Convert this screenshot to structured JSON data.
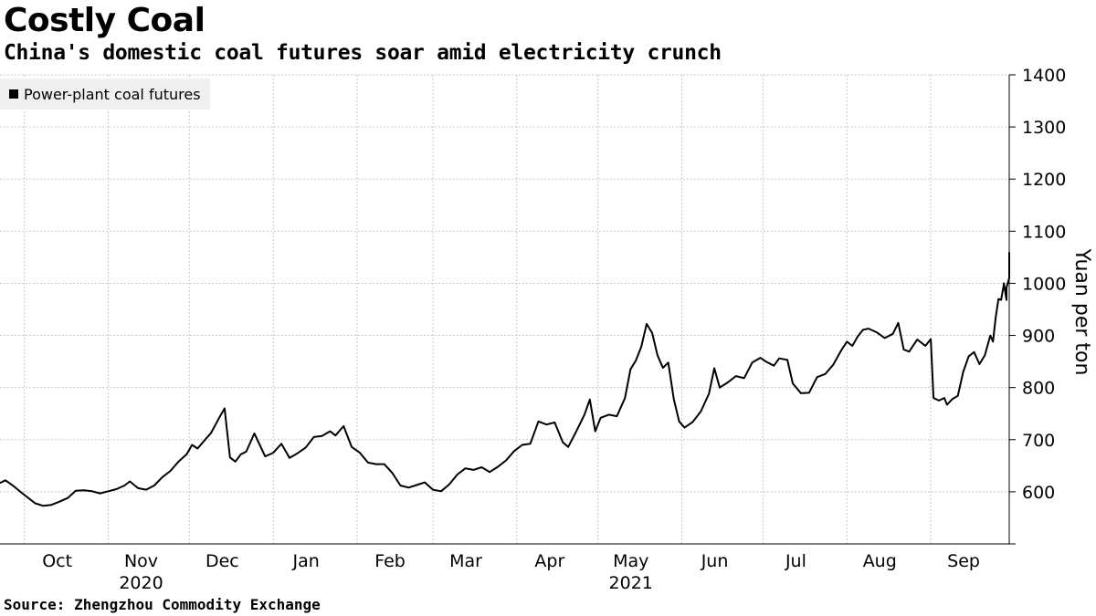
{
  "header": {
    "title": "Costly Coal",
    "subtitle": "China's domestic coal futures soar amid electricity crunch"
  },
  "footer": {
    "source": "Source: Zhengzhou Commodity Exchange"
  },
  "chart_data": {
    "type": "line",
    "title": "Costly Coal",
    "subtitle": "China's domestic coal futures soar amid electricity crunch",
    "ylabel": "Yuan per ton",
    "ylim": [
      500,
      1400
    ],
    "y_ticks": [
      600,
      700,
      800,
      900,
      1000,
      1100,
      1200,
      1300,
      1400
    ],
    "x_range": [
      "2020-09-22",
      "2021-09-30"
    ],
    "x_ticks": [
      {
        "date": "2020-10-01",
        "label": "Oct",
        "year": ""
      },
      {
        "date": "2020-11-01",
        "label": "Nov",
        "year": "2020"
      },
      {
        "date": "2020-12-01",
        "label": "Dec",
        "year": ""
      },
      {
        "date": "2021-01-01",
        "label": "Jan",
        "year": ""
      },
      {
        "date": "2021-02-01",
        "label": "Feb",
        "year": ""
      },
      {
        "date": "2021-03-01",
        "label": "Mar",
        "year": ""
      },
      {
        "date": "2021-04-01",
        "label": "Apr",
        "year": ""
      },
      {
        "date": "2021-05-01",
        "label": "May",
        "year": "2021"
      },
      {
        "date": "2021-06-01",
        "label": "Jun",
        "year": ""
      },
      {
        "date": "2021-07-01",
        "label": "Jul",
        "year": ""
      },
      {
        "date": "2021-08-01",
        "label": "Aug",
        "year": ""
      },
      {
        "date": "2021-09-01",
        "label": "Sep",
        "year": ""
      }
    ],
    "grid": true,
    "legend_position": "top-left",
    "series": [
      {
        "name": "Power-plant coal futures",
        "color": "#000000",
        "points": [
          [
            "2020-09-22",
            617
          ],
          [
            "2020-09-24",
            622
          ],
          [
            "2020-09-27",
            611
          ],
          [
            "2020-09-30",
            598
          ],
          [
            "2020-10-02",
            590
          ],
          [
            "2020-10-05",
            578
          ],
          [
            "2020-10-08",
            573
          ],
          [
            "2020-10-11",
            575
          ],
          [
            "2020-10-14",
            581
          ],
          [
            "2020-10-17",
            588
          ],
          [
            "2020-10-20",
            602
          ],
          [
            "2020-10-23",
            603
          ],
          [
            "2020-10-26",
            601
          ],
          [
            "2020-10-29",
            597
          ],
          [
            "2020-11-01",
            601
          ],
          [
            "2020-11-04",
            605
          ],
          [
            "2020-11-07",
            612
          ],
          [
            "2020-11-09",
            620
          ],
          [
            "2020-11-12",
            607
          ],
          [
            "2020-11-15",
            604
          ],
          [
            "2020-11-18",
            612
          ],
          [
            "2020-11-21",
            628
          ],
          [
            "2020-11-24",
            640
          ],
          [
            "2020-11-27",
            658
          ],
          [
            "2020-11-30",
            672
          ],
          [
            "2020-12-02",
            690
          ],
          [
            "2020-12-04",
            683
          ],
          [
            "2020-12-07",
            701
          ],
          [
            "2020-12-09",
            713
          ],
          [
            "2020-12-12",
            742
          ],
          [
            "2020-12-14",
            760
          ],
          [
            "2020-12-16",
            666
          ],
          [
            "2020-12-18",
            658
          ],
          [
            "2020-12-20",
            672
          ],
          [
            "2020-12-22",
            677
          ],
          [
            "2020-12-25",
            712
          ],
          [
            "2020-12-29",
            668
          ],
          [
            "2021-01-01",
            675
          ],
          [
            "2021-01-04",
            692
          ],
          [
            "2021-01-07",
            665
          ],
          [
            "2021-01-10",
            674
          ],
          [
            "2021-01-13",
            685
          ],
          [
            "2021-01-16",
            705
          ],
          [
            "2021-01-19",
            707
          ],
          [
            "2021-01-22",
            716
          ],
          [
            "2021-01-24",
            708
          ],
          [
            "2021-01-27",
            726
          ],
          [
            "2021-01-30",
            686
          ],
          [
            "2021-02-02",
            675
          ],
          [
            "2021-02-05",
            656
          ],
          [
            "2021-02-08",
            653
          ],
          [
            "2021-02-11",
            653
          ],
          [
            "2021-02-14",
            636
          ],
          [
            "2021-02-17",
            612
          ],
          [
            "2021-02-20",
            608
          ],
          [
            "2021-02-23",
            613
          ],
          [
            "2021-02-26",
            618
          ],
          [
            "2021-03-01",
            604
          ],
          [
            "2021-03-04",
            601
          ],
          [
            "2021-03-07",
            614
          ],
          [
            "2021-03-10",
            633
          ],
          [
            "2021-03-13",
            645
          ],
          [
            "2021-03-16",
            642
          ],
          [
            "2021-03-19",
            647
          ],
          [
            "2021-03-22",
            638
          ],
          [
            "2021-03-25",
            648
          ],
          [
            "2021-03-28",
            660
          ],
          [
            "2021-03-31",
            678
          ],
          [
            "2021-04-03",
            690
          ],
          [
            "2021-04-06",
            692
          ],
          [
            "2021-04-09",
            735
          ],
          [
            "2021-04-12",
            729
          ],
          [
            "2021-04-15",
            733
          ],
          [
            "2021-04-18",
            695
          ],
          [
            "2021-04-20",
            686
          ],
          [
            "2021-04-23",
            716
          ],
          [
            "2021-04-26",
            748
          ],
          [
            "2021-04-28",
            777
          ],
          [
            "2021-04-30",
            716
          ],
          [
            "2021-05-02",
            742
          ],
          [
            "2021-05-05",
            748
          ],
          [
            "2021-05-08",
            745
          ],
          [
            "2021-05-11",
            780
          ],
          [
            "2021-05-13",
            835
          ],
          [
            "2021-05-15",
            852
          ],
          [
            "2021-05-17",
            878
          ],
          [
            "2021-05-19",
            922
          ],
          [
            "2021-05-21",
            905
          ],
          [
            "2021-05-23",
            862
          ],
          [
            "2021-05-25",
            838
          ],
          [
            "2021-05-27",
            848
          ],
          [
            "2021-05-29",
            778
          ],
          [
            "2021-05-31",
            735
          ],
          [
            "2021-06-02",
            723
          ],
          [
            "2021-06-05",
            734
          ],
          [
            "2021-06-08",
            754
          ],
          [
            "2021-06-11",
            788
          ],
          [
            "2021-06-13",
            837
          ],
          [
            "2021-06-15",
            800
          ],
          [
            "2021-06-18",
            810
          ],
          [
            "2021-06-21",
            822
          ],
          [
            "2021-06-24",
            818
          ],
          [
            "2021-06-27",
            848
          ],
          [
            "2021-06-30",
            857
          ],
          [
            "2021-07-02",
            850
          ],
          [
            "2021-07-05",
            842
          ],
          [
            "2021-07-07",
            856
          ],
          [
            "2021-07-10",
            853
          ],
          [
            "2021-07-12",
            808
          ],
          [
            "2021-07-15",
            789
          ],
          [
            "2021-07-18",
            790
          ],
          [
            "2021-07-21",
            820
          ],
          [
            "2021-07-24",
            826
          ],
          [
            "2021-07-27",
            844
          ],
          [
            "2021-07-30",
            872
          ],
          [
            "2021-08-01",
            888
          ],
          [
            "2021-08-03",
            880
          ],
          [
            "2021-08-05",
            898
          ],
          [
            "2021-08-07",
            911
          ],
          [
            "2021-08-09",
            913
          ],
          [
            "2021-08-12",
            906
          ],
          [
            "2021-08-15",
            895
          ],
          [
            "2021-08-18",
            903
          ],
          [
            "2021-08-20",
            924
          ],
          [
            "2021-08-22",
            873
          ],
          [
            "2021-08-24",
            869
          ],
          [
            "2021-08-27",
            892
          ],
          [
            "2021-08-30",
            880
          ],
          [
            "2021-09-01",
            893
          ],
          [
            "2021-09-02",
            780
          ],
          [
            "2021-09-04",
            775
          ],
          [
            "2021-09-06",
            780
          ],
          [
            "2021-09-07",
            767
          ],
          [
            "2021-09-09",
            778
          ],
          [
            "2021-09-11",
            784
          ],
          [
            "2021-09-13",
            830
          ],
          [
            "2021-09-15",
            860
          ],
          [
            "2021-09-17",
            868
          ],
          [
            "2021-09-19",
            845
          ],
          [
            "2021-09-21",
            862
          ],
          [
            "2021-09-23",
            900
          ],
          [
            "2021-09-24",
            888
          ],
          [
            "2021-09-25",
            935
          ],
          [
            "2021-09-26",
            970
          ],
          [
            "2021-09-27",
            968
          ],
          [
            "2021-09-28",
            998
          ],
          [
            "2021-09-28",
            1000
          ],
          [
            "2021-09-29",
            968
          ],
          [
            "2021-09-29",
            988
          ],
          [
            "2021-09-29",
            992
          ],
          [
            "2021-09-30",
            1010
          ],
          [
            "2021-09-30",
            1060
          ]
        ]
      }
    ]
  }
}
